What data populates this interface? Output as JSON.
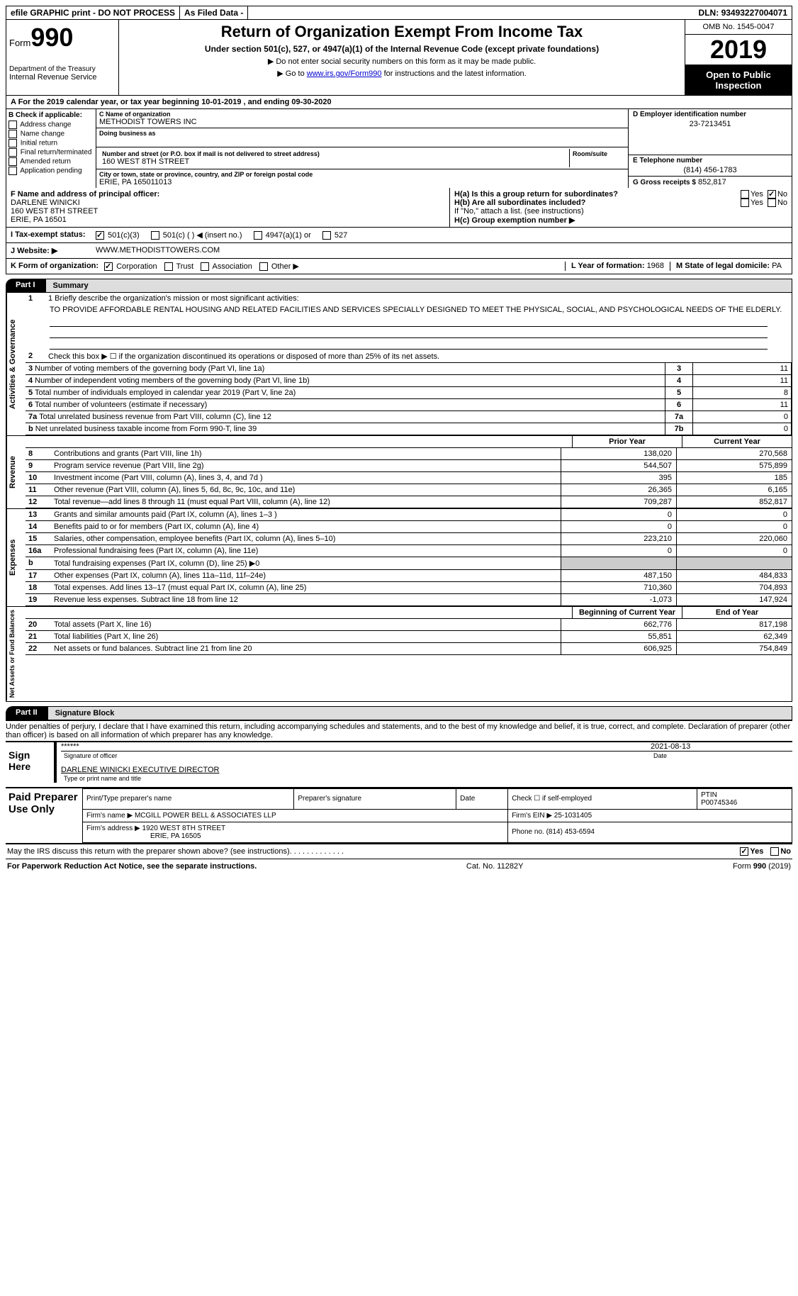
{
  "top": {
    "efile": "efile GRAPHIC print - DO NOT PROCESS",
    "asfiled": "As Filed Data -",
    "dln_lbl": "DLN:",
    "dln": "93493227004071"
  },
  "header": {
    "form": "Form",
    "num": "990",
    "dept1": "Department of the Treasury",
    "dept2": "Internal Revenue Service",
    "title": "Return of Organization Exempt From Income Tax",
    "sub": "Under section 501(c), 527, or 4947(a)(1) of the Internal Revenue Code (except private foundations)",
    "note1": "▶ Do not enter social security numbers on this form as it may be made public.",
    "note2_pre": "▶ Go to ",
    "note2_link": "www.irs.gov/Form990",
    "note2_post": " for instructions and the latest information.",
    "omb": "OMB No. 1545-0047",
    "year": "2019",
    "inspect": "Open to Public Inspection"
  },
  "rowA": "A   For the 2019 calendar year, or tax year beginning 10-01-2019   , and ending 09-30-2020",
  "colB": {
    "hdr": "B Check if applicable:",
    "items": [
      "Address change",
      "Name change",
      "Initial return",
      "Final return/terminated",
      "Amended return",
      "Application pending"
    ]
  },
  "colC": {
    "name_lbl": "C Name of organization",
    "name": "METHODIST TOWERS INC",
    "dba_lbl": "Doing business as",
    "addr_lbl": "Number and street (or P.O. box if mail is not delivered to street address)",
    "room_lbl": "Room/suite",
    "addr": "160 WEST 8TH STREET",
    "city_lbl": "City or town, state or province, country, and ZIP or foreign postal code",
    "city": "ERIE, PA  165011013"
  },
  "colD": {
    "ein_lbl": "D Employer identification number",
    "ein": "23-7213451",
    "tel_lbl": "E Telephone number",
    "tel": "(814) 456-1783",
    "gross_lbl": "G Gross receipts $",
    "gross": "852,817"
  },
  "rowF": {
    "lbl": "F  Name and address of principal officer:",
    "name": "DARLENE WINICKI",
    "addr1": "160 WEST 8TH STREET",
    "addr2": "ERIE, PA  16501"
  },
  "rowH": {
    "a": "H(a) Is this a group return for subordinates?",
    "b": "H(b) Are all subordinates included?",
    "note": "If \"No,\" attach a list. (see instructions)",
    "c": "H(c) Group exemption number ▶",
    "yes": "Yes",
    "no": "No"
  },
  "rowI": {
    "lbl": "I   Tax-exempt status:",
    "opts": [
      "501(c)(3)",
      "501(c) (  ) ◀ (insert no.)",
      "4947(a)(1) or",
      "527"
    ]
  },
  "rowJ": {
    "lbl": "J   Website: ▶",
    "val": "WWW.METHODISTTOWERS.COM"
  },
  "rowK": {
    "lbl": "K Form of organization:",
    "opts": [
      "Corporation",
      "Trust",
      "Association",
      "Other ▶"
    ],
    "l_lbl": "L Year of formation:",
    "l_val": "1968",
    "m_lbl": "M State of legal domicile:",
    "m_val": "PA"
  },
  "part1": {
    "box": "Part I",
    "title": "Summary"
  },
  "summary": {
    "vtab1": "Activities & Governance",
    "mission_lbl": "1 Briefly describe the organization's mission or most significant activities:",
    "mission": "TO PROVIDE AFFORDABLE RENTAL HOUSING AND RELATED FACILITIES AND SERVICES SPECIALLY DESIGNED TO MEET THE PHYSICAL, SOCIAL, AND PSYCHOLOGICAL NEEDS OF THE ELDERLY.",
    "l2": "Check this box ▶ ☐ if the organization discontinued its operations or disposed of more than 25% of its net assets.",
    "lines": [
      {
        "n": "3",
        "t": "Number of voting members of the governing body (Part VI, line 1a)",
        "k": "3",
        "v": "11"
      },
      {
        "n": "4",
        "t": "Number of independent voting members of the governing body (Part VI, line 1b)",
        "k": "4",
        "v": "11"
      },
      {
        "n": "5",
        "t": "Total number of individuals employed in calendar year 2019 (Part V, line 2a)",
        "k": "5",
        "v": "8"
      },
      {
        "n": "6",
        "t": "Total number of volunteers (estimate if necessary)",
        "k": "6",
        "v": "11"
      },
      {
        "n": "7a",
        "t": "Total unrelated business revenue from Part VIII, column (C), line 12",
        "k": "7a",
        "v": "0"
      },
      {
        "n": "b",
        "t": "Net unrelated business taxable income from Form 990-T, line 39",
        "k": "7b",
        "v": "0"
      }
    ]
  },
  "fin": {
    "prior": "Prior Year",
    "current": "Current Year",
    "begin": "Beginning of Current Year",
    "end": "End of Year",
    "rev_tab": "Revenue",
    "exp_tab": "Expenses",
    "net_tab": "Net Assets or Fund Balances",
    "rev": [
      {
        "n": "8",
        "t": "Contributions and grants (Part VIII, line 1h)",
        "p": "138,020",
        "c": "270,568"
      },
      {
        "n": "9",
        "t": "Program service revenue (Part VIII, line 2g)",
        "p": "544,507",
        "c": "575,899"
      },
      {
        "n": "10",
        "t": "Investment income (Part VIII, column (A), lines 3, 4, and 7d )",
        "p": "395",
        "c": "185"
      },
      {
        "n": "11",
        "t": "Other revenue (Part VIII, column (A), lines 5, 6d, 8c, 9c, 10c, and 11e)",
        "p": "26,365",
        "c": "6,165"
      },
      {
        "n": "12",
        "t": "Total revenue—add lines 8 through 11 (must equal Part VIII, column (A), line 12)",
        "p": "709,287",
        "c": "852,817"
      }
    ],
    "exp": [
      {
        "n": "13",
        "t": "Grants and similar amounts paid (Part IX, column (A), lines 1–3 )",
        "p": "0",
        "c": "0"
      },
      {
        "n": "14",
        "t": "Benefits paid to or for members (Part IX, column (A), line 4)",
        "p": "0",
        "c": "0"
      },
      {
        "n": "15",
        "t": "Salaries, other compensation, employee benefits (Part IX, column (A), lines 5–10)",
        "p": "223,210",
        "c": "220,060"
      },
      {
        "n": "16a",
        "t": "Professional fundraising fees (Part IX, column (A), line 11e)",
        "p": "0",
        "c": "0"
      },
      {
        "n": "b",
        "t": "Total fundraising expenses (Part IX, column (D), line 25) ▶0",
        "p": "",
        "c": "",
        "grey": true
      },
      {
        "n": "17",
        "t": "Other expenses (Part IX, column (A), lines 11a–11d, 11f–24e)",
        "p": "487,150",
        "c": "484,833"
      },
      {
        "n": "18",
        "t": "Total expenses. Add lines 13–17 (must equal Part IX, column (A), line 25)",
        "p": "710,360",
        "c": "704,893"
      },
      {
        "n": "19",
        "t": "Revenue less expenses. Subtract line 18 from line 12",
        "p": "-1,073",
        "c": "147,924"
      }
    ],
    "net": [
      {
        "n": "20",
        "t": "Total assets (Part X, line 16)",
        "p": "662,776",
        "c": "817,198"
      },
      {
        "n": "21",
        "t": "Total liabilities (Part X, line 26)",
        "p": "55,851",
        "c": "62,349"
      },
      {
        "n": "22",
        "t": "Net assets or fund balances. Subtract line 21 from line 20",
        "p": "606,925",
        "c": "754,849"
      }
    ]
  },
  "part2": {
    "box": "Part II",
    "title": "Signature Block"
  },
  "sig": {
    "decl": "Under penalties of perjury, I declare that I have examined this return, including accompanying schedules and statements, and to the best of my knowledge and belief, it is true, correct, and complete. Declaration of preparer (other than officer) is based on all information of which preparer has any knowledge.",
    "sign_here": "Sign Here",
    "stars": "******",
    "sig_cap": "Signature of officer",
    "date": "2021-08-13",
    "date_cap": "Date",
    "name": "DARLENE WINICKI EXECUTIVE DIRECTOR",
    "name_cap": "Type or print name and title"
  },
  "paid": {
    "hdr": "Paid Preparer Use Only",
    "c1": "Print/Type preparer's name",
    "c2": "Preparer's signature",
    "c3": "Date",
    "c4a": "Check ☐ if self-employed",
    "c4b": "PTIN",
    "ptin": "P00745346",
    "firm_lbl": "Firm's name     ▶",
    "firm": "MCGILL POWER BELL & ASSOCIATES LLP",
    "ein_lbl": "Firm's EIN ▶",
    "ein": "25-1031405",
    "addr_lbl": "Firm's address ▶",
    "addr1": "1920 WEST 8TH STREET",
    "addr2": "ERIE, PA  16505",
    "phone_lbl": "Phone no.",
    "phone": "(814) 453-6594"
  },
  "footer": {
    "discuss": "May the IRS discuss this return with the preparer shown above? (see instructions)",
    "yes": "Yes",
    "no": "No",
    "pra": "For Paperwork Reduction Act Notice, see the separate instructions.",
    "cat": "Cat. No. 11282Y",
    "form": "Form 990 (2019)"
  }
}
